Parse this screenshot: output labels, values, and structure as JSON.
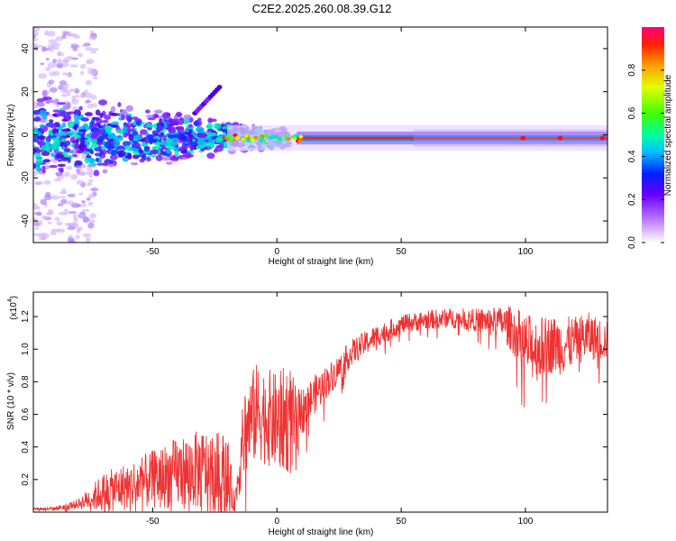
{
  "title": "C2E2.2025.260.08.39.G12",
  "chart_data": [
    {
      "type": "heatmap",
      "xlabel": "Height of straight line (km)",
      "ylabel": "Frequency (Hz)",
      "xlim": [
        -98,
        133
      ],
      "ylim": [
        -50,
        50
      ],
      "xticks": [
        -50,
        0,
        50,
        100
      ],
      "yticks": [
        -40,
        -20,
        0,
        20,
        40
      ],
      "xtick_labels": [
        "-50",
        "0",
        "50",
        "100"
      ],
      "ytick_labels": [
        "-40",
        "-20",
        "0",
        "20",
        "40"
      ],
      "colorbar": {
        "label": "Normalized spectral amplitude",
        "range": [
          0,
          1
        ],
        "ticks": [
          0.0,
          0.2,
          0.4,
          0.6,
          0.8
        ],
        "tick_labels": [
          "0.0",
          "0.2",
          "0.4",
          "0.6",
          "0.8"
        ],
        "colormap": "rainbow"
      },
      "features": {
        "central_band_frequency_hz": -1.5,
        "band_start_km": 8,
        "band_end_km": 133,
        "scatter_region_km": [
          -98,
          5
        ]
      },
      "grid": false
    },
    {
      "type": "line",
      "xlabel": "Height of straight line (km)",
      "ylabel": "SNR (10 * v/v)",
      "y_multiplier_label": "(x10",
      "y_multiplier_exponent": "4",
      "xlim": [
        -98,
        133
      ],
      "ylim": [
        0,
        1.35
      ],
      "xticks": [
        -50,
        0,
        50,
        100
      ],
      "yticks": [
        0.2,
        0.4,
        0.6,
        0.8,
        1.0,
        1.2
      ],
      "xtick_labels": [
        "-50",
        "0",
        "50",
        "100"
      ],
      "ytick_labels": [
        "0.2",
        "0.4",
        "0.6",
        "0.8",
        "1.0",
        "1.2"
      ],
      "line_color": "#ee3333",
      "series": [
        {
          "x": [
            -98,
            -90,
            -80,
            -70,
            -60,
            -50,
            -40,
            -30,
            -20,
            -17,
            -13,
            -8,
            0,
            5,
            8,
            10,
            15,
            20,
            25,
            30,
            40,
            50,
            60,
            70,
            80,
            90,
            95,
            100,
            105,
            110,
            115,
            120,
            125,
            133
          ],
          "y": [
            0.02,
            0.02,
            0.05,
            0.12,
            0.16,
            0.2,
            0.24,
            0.26,
            0.24,
            0.05,
            0.5,
            0.62,
            0.55,
            0.58,
            0.45,
            0.62,
            0.72,
            0.8,
            0.88,
            0.98,
            1.08,
            1.15,
            1.18,
            1.19,
            1.18,
            1.17,
            1.12,
            1.02,
            1.0,
            1.03,
            1.02,
            1.05,
            1.08,
            1.05
          ],
          "spread": [
            0.01,
            0.01,
            0.03,
            0.12,
            0.15,
            0.18,
            0.22,
            0.25,
            0.25,
            0.05,
            0.3,
            0.3,
            0.3,
            0.35,
            0.3,
            0.15,
            0.12,
            0.1,
            0.09,
            0.08,
            0.07,
            0.06,
            0.06,
            0.06,
            0.07,
            0.09,
            0.15,
            0.2,
            0.2,
            0.18,
            0.18,
            0.15,
            0.15,
            0.12
          ]
        }
      ],
      "grid": false
    }
  ]
}
